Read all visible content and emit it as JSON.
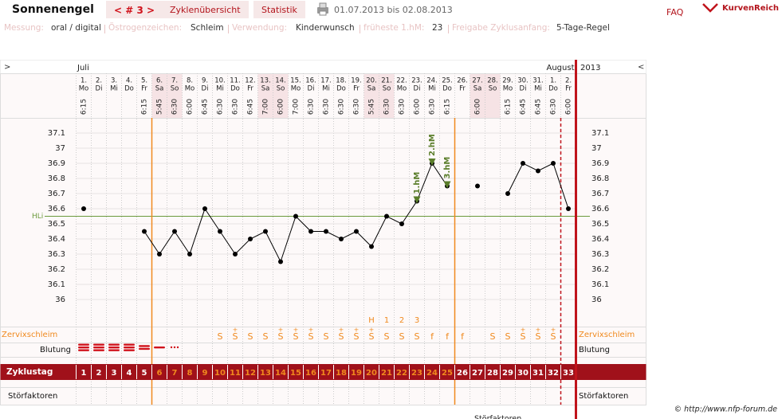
{
  "header": {
    "user": "Sonnenengel",
    "cycle_nav": "< # 3 >",
    "tabs": [
      "Zyklenübersicht",
      "Statistik"
    ],
    "range": "01.07.2013 bis 02.08.2013",
    "faq": "FAQ",
    "logo": "KurvenReich"
  },
  "settings": [
    {
      "label": "Messung:",
      "value": "oral / digital"
    },
    {
      "label": "Östrogenzeichen:",
      "value": "Schleim"
    },
    {
      "label": "Verwendung:",
      "value": "Kinderwunsch"
    },
    {
      "label": "früheste 1.hM:",
      "value": "23"
    },
    {
      "label": "Freigabe Zyklusanfang:",
      "value": "5-Tage-Regel"
    }
  ],
  "chart_data": {
    "type": "line",
    "nav_left": ">",
    "nav_right": "<",
    "months": [
      "Juli",
      "August"
    ],
    "year": "2013",
    "days": [
      "1.",
      "2.",
      "3.",
      "4.",
      "5.",
      "6.",
      "7.",
      "8.",
      "9.",
      "10.",
      "11.",
      "12.",
      "13.",
      "14.",
      "15.",
      "16.",
      "17.",
      "18.",
      "19.",
      "20.",
      "21.",
      "22.",
      "23.",
      "24.",
      "25.",
      "26.",
      "27.",
      "28.",
      "29.",
      "30.",
      "31.",
      "1.",
      "2."
    ],
    "weekdays": [
      "Mo",
      "Di",
      "Mi",
      "Do",
      "Fr",
      "Sa",
      "So",
      "Mo",
      "Di",
      "Mi",
      "Do",
      "Fr",
      "Sa",
      "So",
      "Mo",
      "Di",
      "Mi",
      "Do",
      "Fr",
      "Sa",
      "So",
      "Mo",
      "Di",
      "Mi",
      "Do",
      "Fr",
      "Sa",
      "So",
      "Mo",
      "Di",
      "Mi",
      "Do",
      "Fr"
    ],
    "times": [
      "6:15",
      null,
      null,
      null,
      "6:15",
      "5:45",
      "6:30",
      "6:00",
      "6:45",
      "6:30",
      "6:30",
      "6:45",
      "7:00",
      "6:00",
      "7:00",
      "6:30",
      "6:30",
      "6:30",
      "6:30",
      "5:45",
      "6:30",
      "6:30",
      "6:00",
      "6:30",
      "6:15",
      null,
      "6:00",
      null,
      "6:15",
      "6:45",
      "6:45",
      "6:30",
      "6:00"
    ],
    "values": [
      36.6,
      null,
      null,
      null,
      36.45,
      36.3,
      36.45,
      36.3,
      36.6,
      36.45,
      36.3,
      36.4,
      36.45,
      36.25,
      36.55,
      36.45,
      36.45,
      36.4,
      36.45,
      36.35,
      36.55,
      36.5,
      36.65,
      36.9,
      36.75,
      null,
      36.75,
      null,
      36.7,
      36.9,
      36.85,
      36.9,
      36.6
    ],
    "color": "#000000",
    "ylim": [
      35.9,
      37.2
    ],
    "yticks": [
      36,
      36.1,
      36.2,
      36.3,
      36.4,
      36.5,
      36.6,
      36.7,
      36.8,
      36.9,
      37,
      37.1
    ],
    "grid": true,
    "coverline": {
      "label": "HLi",
      "value": 36.55,
      "color": "#6b9a3c"
    },
    "markers": [
      {
        "label": "1.hM",
        "day": 23
      },
      {
        "label": "2.hM",
        "day": 24
      },
      {
        "label": "3.hM",
        "day": 25
      }
    ],
    "marker_color": "#5a7d2a",
    "phase_lines_after": [
      5,
      25
    ],
    "red_dashed_after": 32,
    "red_solid_after": 33,
    "peak_labels": [
      {
        "label": "H",
        "day": 20
      },
      {
        "label": "1",
        "day": 21
      },
      {
        "label": "2",
        "day": 22
      },
      {
        "label": "3",
        "day": 23
      }
    ],
    "zervix": [
      null,
      null,
      null,
      null,
      null,
      null,
      null,
      null,
      null,
      {
        "letter": "S"
      },
      {
        "letter": "S",
        "sup": "+"
      },
      {
        "letter": "S"
      },
      {
        "letter": "S"
      },
      {
        "letter": "S",
        "sup": "+"
      },
      {
        "letter": "S",
        "sup": "+"
      },
      {
        "letter": "S",
        "sup": "+"
      },
      {
        "letter": "S"
      },
      {
        "letter": "S",
        "sup": "+"
      },
      {
        "letter": "S",
        "sup": "+"
      },
      {
        "letter": "S",
        "sup": "+"
      },
      {
        "letter": "S"
      },
      {
        "letter": "S"
      },
      {
        "letter": "S"
      },
      {
        "letter": "f"
      },
      {
        "letter": "f"
      },
      {
        "letter": "f"
      },
      null,
      {
        "letter": "S"
      },
      {
        "letter": "S"
      },
      {
        "letter": "S",
        "sup": "+"
      },
      {
        "letter": "S",
        "sup": "+"
      },
      {
        "letter": "S",
        "sup": "+"
      },
      null
    ],
    "cycle_days": [
      1,
      2,
      3,
      4,
      5,
      6,
      7,
      8,
      9,
      10,
      11,
      12,
      13,
      14,
      15,
      16,
      17,
      18,
      19,
      20,
      21,
      22,
      23,
      24,
      25,
      26,
      27,
      28,
      29,
      30,
      31,
      32,
      33
    ],
    "row_labels": {
      "zervix": "Zervixschleim",
      "blutung": "Blutung",
      "zyklustag": "Zyklustag",
      "stoer": "Störfaktoren"
    }
  },
  "footer": {
    "copyright": "© http://www.nfp-forum.de",
    "cut_label": "Störfaktoren"
  }
}
